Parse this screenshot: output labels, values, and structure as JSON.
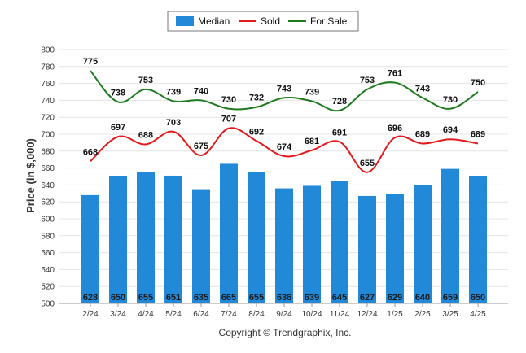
{
  "chart_data": {
    "type": "bar",
    "title": "",
    "xlabel": "",
    "ylabel": "Price (in $,000)",
    "ylim": [
      500,
      800
    ],
    "y_ticks": [
      500,
      520,
      540,
      560,
      580,
      600,
      620,
      640,
      660,
      680,
      700,
      720,
      740,
      760,
      780,
      800
    ],
    "grid": true,
    "legend_position": "top-center",
    "categories": [
      "2/24",
      "3/24",
      "4/24",
      "5/24",
      "6/24",
      "7/24",
      "8/24",
      "9/24",
      "10/24",
      "11/24",
      "12/24",
      "1/25",
      "2/25",
      "3/25",
      "4/25"
    ],
    "series": [
      {
        "name": "Median",
        "kind": "bar",
        "color": "#2288d8",
        "values": [
          628,
          650,
          655,
          651,
          635,
          665,
          655,
          636,
          639,
          645,
          627,
          629,
          640,
          659,
          650
        ]
      },
      {
        "name": "Sold",
        "kind": "line",
        "color": "#e31a1c",
        "values": [
          668,
          697,
          688,
          703,
          675,
          707,
          692,
          674,
          681,
          691,
          655,
          696,
          689,
          694,
          689
        ]
      },
      {
        "name": "For Sale",
        "kind": "line",
        "color": "#1e7a1e",
        "values": [
          775,
          738,
          753,
          739,
          740,
          730,
          732,
          743,
          739,
          728,
          753,
          761,
          743,
          730,
          750
        ]
      }
    ]
  },
  "footer": {
    "copyright": "Copyright © Trendgraphix, Inc."
  }
}
